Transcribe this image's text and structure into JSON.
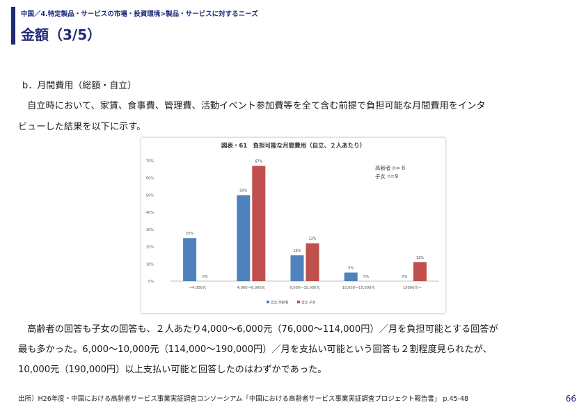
{
  "header": {
    "breadcrumb": "中国／4.特定製品・サービスの市場・投資環境>製品・サービスに対するニーズ",
    "title": "金額（3/5）"
  },
  "section_heading": "b．月間費用（総額・自立）",
  "intro_lines": [
    "　自立時において、家賃、食事費、管理費、活動イベント参加費等を全て含む前提で負担可能な月間費用をインタ",
    "ビューした結果を以下に示す。"
  ],
  "chart_data": {
    "type": "bar",
    "title": "図表・61　負担可能な月間費用（自立、２人あたり）",
    "categories": [
      "～4,000元",
      "4,000～6,000元",
      "6,000～10,000元",
      "10,000～15,000元",
      "15000元～"
    ],
    "series": [
      {
        "name": "高齢者",
        "values": [
          25,
          50,
          15,
          5,
          0
        ],
        "color": "#4f81bd"
      },
      {
        "name": "子女",
        "values": [
          0,
          67,
          22,
          0,
          11
        ],
        "color": "#c0504d"
      }
    ],
    "data_labels": [
      [
        "25%",
        "50%",
        "15%",
        "5%",
        "0%"
      ],
      [
        "0%",
        "67%",
        "22%",
        "0%",
        "11%"
      ]
    ],
    "y_ticks": [
      "0%",
      "10%",
      "20%",
      "30%",
      "40%",
      "50%",
      "60%",
      "70%"
    ],
    "ylim": [
      0,
      70
    ],
    "grid": false,
    "annotation_lines": [
      "高齢者 n= 8",
      "子女 n=9"
    ],
    "legend": {
      "position": "bottom",
      "labels": [
        "自立 高齢者",
        "自立 子女"
      ]
    }
  },
  "conclusion_lines": [
    "　高齢者の回答も子女の回答も、２人あたり4,000～6,000元（76,000～114,000円）／月を負担可能とする回答が",
    "最も多かった。6,000～10,000元（114,000～190,000円）／月を支払い可能という回答も２割程度見られたが、",
    "10,000元（190,000円）以上支払い可能と回答したのはわずかであった。"
  ],
  "source": "出所）H26年度・中国における高齢者サービス事業実証調査コンソーシアム「中国における高齢者サービス事業実証調査プロジェクト報告書」 p.45-48",
  "page_number": "66"
}
